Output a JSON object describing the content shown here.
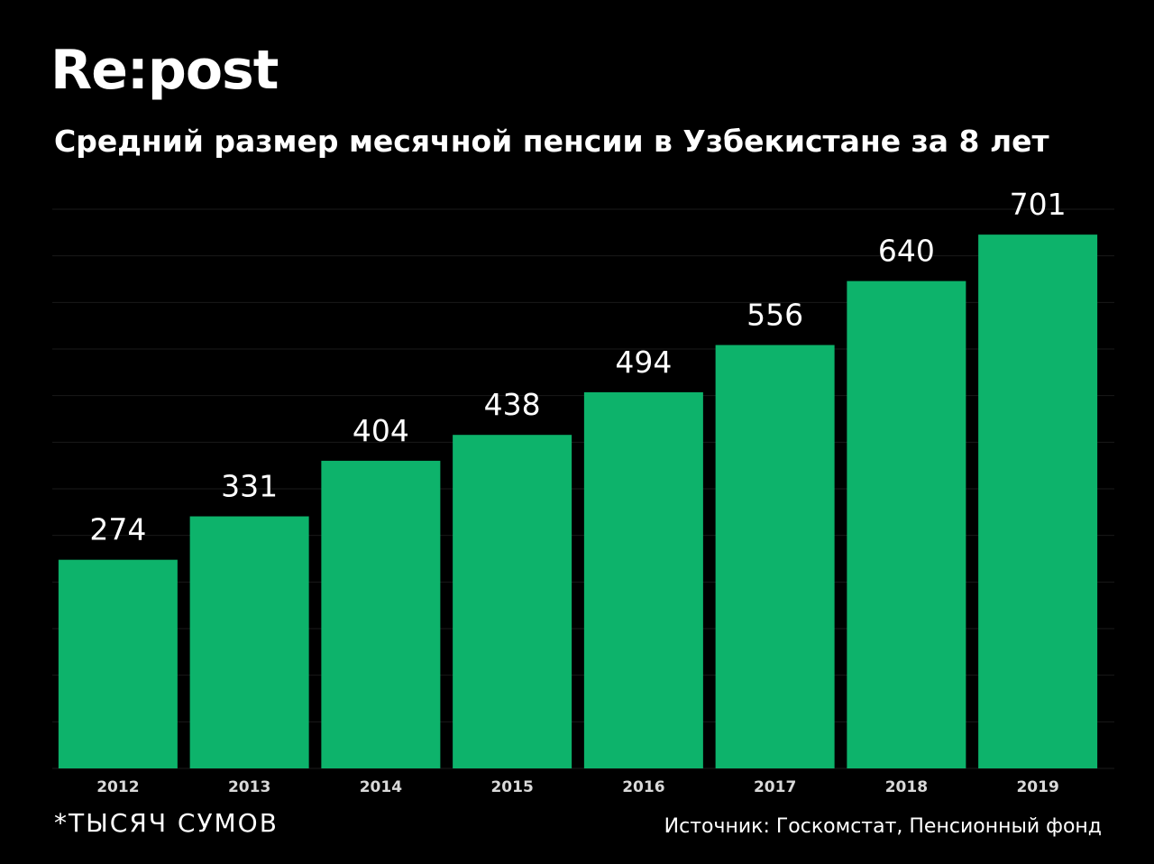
{
  "brand": {
    "name": "Re:post"
  },
  "colors": {
    "background": "#000000",
    "bar": "#0db36b",
    "text": "#ffffff",
    "tick_text": "#d9d9d9",
    "grid": "#1a1a1a"
  },
  "footer": {
    "unit_note": "*ТЫСЯЧ СУМОВ",
    "source": "Источник: Госкомстат, Пенсионный фонд"
  },
  "chart_data": {
    "type": "bar",
    "title": "Средний размер месячной пенсии в Узбекистане за 8 лет",
    "categories": [
      "2012",
      "2013",
      "2014",
      "2015",
      "2016",
      "2017",
      "2018",
      "2019"
    ],
    "values": [
      274,
      331,
      404,
      438,
      494,
      556,
      640,
      701
    ],
    "data_labels": [
      "274",
      "331",
      "404",
      "438",
      "494",
      "556",
      "640",
      "701"
    ],
    "xlabel": "",
    "ylabel": "",
    "ylim": [
      0,
      720
    ],
    "grid": true,
    "legend": "none"
  }
}
